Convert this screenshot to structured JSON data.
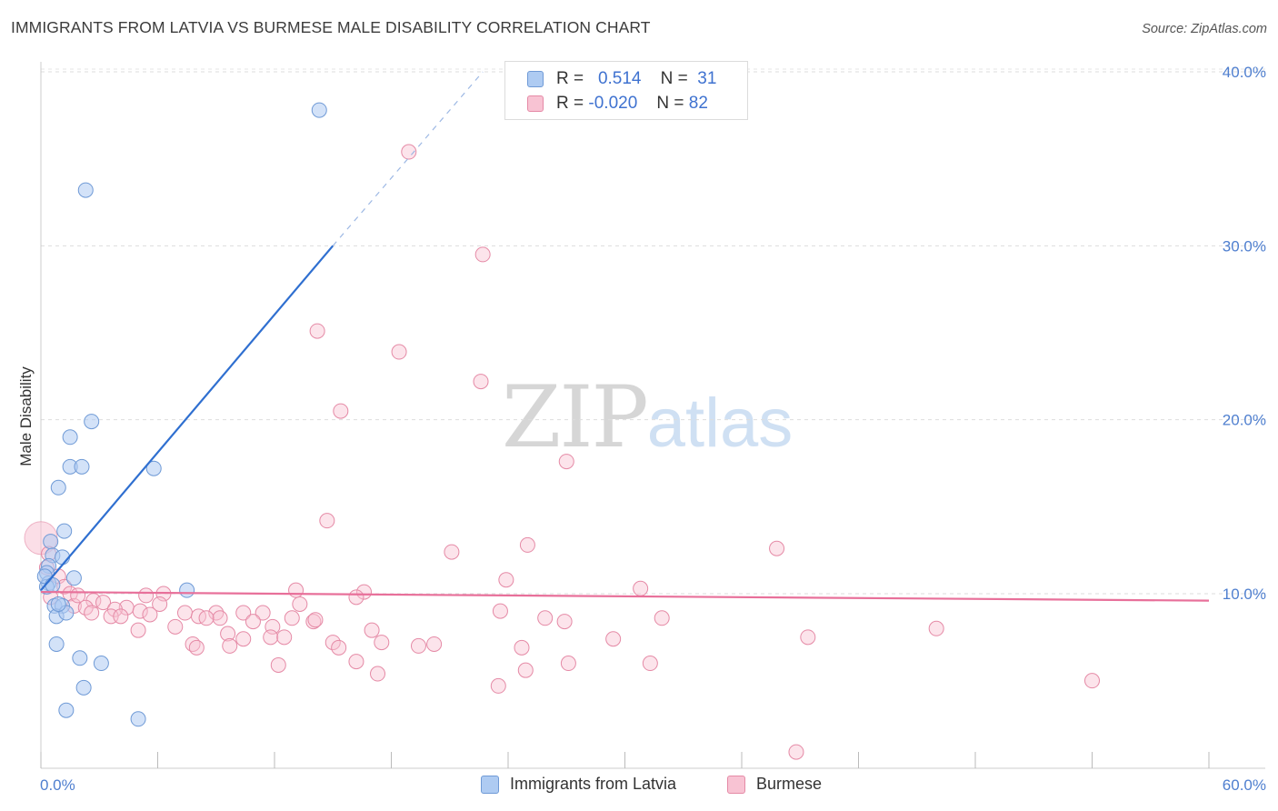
{
  "header": {
    "title": "IMMIGRANTS FROM LATVIA VS BURMESE MALE DISABILITY CORRELATION CHART",
    "source": "Source: ZipAtlas.com"
  },
  "legend": {
    "rows": [
      {
        "r_label": "R =",
        "r_value": "0.514",
        "n_label": "N =",
        "n_value": "31",
        "color": "#aecbf2",
        "border": "#6f9ad6"
      },
      {
        "r_label": "R =",
        "r_value": "-0.020",
        "n_label": "N =",
        "n_value": "82",
        "color": "#f8c3d3",
        "border": "#e58aa6"
      }
    ]
  },
  "bottom_legend": [
    {
      "label": "Immigrants from Latvia",
      "color": "#aecbf2",
      "border": "#6f9ad6"
    },
    {
      "label": "Burmese",
      "color": "#f8c3d3",
      "border": "#e58aa6"
    }
  ],
  "watermark": {
    "zip": "ZIP",
    "atlas": "atlas"
  },
  "chart_data": {
    "type": "scatter",
    "title": "IMMIGRANTS FROM LATVIA VS BURMESE MALE DISABILITY CORRELATION CHART",
    "xlabel": "",
    "ylabel": "Male Disability",
    "xlim": [
      0,
      60
    ],
    "ylim": [
      0,
      42
    ],
    "x_tick_labels": [
      "0.0%",
      "60.0%"
    ],
    "y_ticks": [
      10,
      20,
      30,
      40
    ],
    "y_tick_labels": [
      "10.0%",
      "20.0%",
      "30.0%",
      "40.0%"
    ],
    "grid": true,
    "legend_position": "top-center",
    "series": [
      {
        "name": "Immigrants from Latvia",
        "color": "#6f9ad6",
        "fill": "#aecbf2",
        "trend": {
          "x": [
            0,
            15
          ],
          "y": [
            10.2,
            30.0
          ],
          "dashed_extension_to": [
            22.7,
            40.0
          ],
          "color": "#2f6fd0"
        },
        "points": [
          [
            14.3,
            37.8
          ],
          [
            2.3,
            33.2
          ],
          [
            2.6,
            19.9
          ],
          [
            1.5,
            19.0
          ],
          [
            1.5,
            17.3
          ],
          [
            2.1,
            17.3
          ],
          [
            5.8,
            17.2
          ],
          [
            0.9,
            16.1
          ],
          [
            1.2,
            13.6
          ],
          [
            0.5,
            13.0
          ],
          [
            0.6,
            12.2
          ],
          [
            1.1,
            12.1
          ],
          [
            0.4,
            11.6
          ],
          [
            0.3,
            11.2
          ],
          [
            1.7,
            10.9
          ],
          [
            0.4,
            10.6
          ],
          [
            0.3,
            10.4
          ],
          [
            7.5,
            10.2
          ],
          [
            0.7,
            9.3
          ],
          [
            1.1,
            9.3
          ],
          [
            0.8,
            8.7
          ],
          [
            1.3,
            8.9
          ],
          [
            0.8,
            7.1
          ],
          [
            2.0,
            6.3
          ],
          [
            3.1,
            6.0
          ],
          [
            2.2,
            4.6
          ],
          [
            1.3,
            3.3
          ],
          [
            5.0,
            2.8
          ],
          [
            0.2,
            11.0
          ],
          [
            0.6,
            10.5
          ],
          [
            0.9,
            9.4
          ]
        ]
      },
      {
        "name": "Burmese",
        "color": "#e58aa6",
        "fill": "#f8c3d3",
        "trend": {
          "x": [
            0,
            60
          ],
          "y": [
            10.1,
            9.6
          ],
          "color": "#e8709a"
        },
        "points": [
          [
            18.9,
            35.4
          ],
          [
            22.7,
            29.5
          ],
          [
            14.2,
            25.1
          ],
          [
            18.4,
            23.9
          ],
          [
            22.6,
            22.2
          ],
          [
            15.4,
            20.5
          ],
          [
            27.0,
            17.6
          ],
          [
            14.7,
            14.2
          ],
          [
            25.0,
            12.8
          ],
          [
            37.8,
            12.6
          ],
          [
            21.1,
            12.4
          ],
          [
            0.4,
            12.3
          ],
          [
            0.3,
            11.5
          ],
          [
            0.9,
            11.0
          ],
          [
            1.2,
            10.4
          ],
          [
            23.9,
            10.8
          ],
          [
            30.8,
            10.3
          ],
          [
            1.5,
            10.0
          ],
          [
            13.1,
            10.2
          ],
          [
            16.6,
            10.1
          ],
          [
            6.3,
            10.0
          ],
          [
            5.4,
            9.9
          ],
          [
            2.7,
            9.6
          ],
          [
            3.2,
            9.5
          ],
          [
            6.1,
            9.4
          ],
          [
            1.7,
            9.3
          ],
          [
            2.3,
            9.2
          ],
          [
            4.4,
            9.2
          ],
          [
            13.3,
            9.4
          ],
          [
            16.2,
            9.8
          ],
          [
            3.8,
            9.1
          ],
          [
            5.1,
            9.0
          ],
          [
            9.0,
            8.9
          ],
          [
            10.4,
            8.9
          ],
          [
            11.4,
            8.9
          ],
          [
            23.6,
            9.0
          ],
          [
            2.6,
            8.9
          ],
          [
            3.6,
            8.7
          ],
          [
            4.1,
            8.7
          ],
          [
            5.6,
            8.8
          ],
          [
            7.4,
            8.9
          ],
          [
            8.1,
            8.7
          ],
          [
            9.2,
            8.6
          ],
          [
            12.9,
            8.6
          ],
          [
            14.0,
            8.4
          ],
          [
            25.9,
            8.6
          ],
          [
            31.9,
            8.6
          ],
          [
            8.5,
            8.6
          ],
          [
            10.9,
            8.4
          ],
          [
            14.1,
            8.5
          ],
          [
            6.9,
            8.1
          ],
          [
            11.9,
            8.1
          ],
          [
            26.9,
            8.4
          ],
          [
            5.0,
            7.9
          ],
          [
            17.0,
            7.9
          ],
          [
            9.6,
            7.7
          ],
          [
            11.8,
            7.5
          ],
          [
            10.4,
            7.4
          ],
          [
            12.5,
            7.5
          ],
          [
            15.0,
            7.2
          ],
          [
            7.8,
            7.1
          ],
          [
            17.5,
            7.2
          ],
          [
            19.4,
            7.0
          ],
          [
            20.2,
            7.1
          ],
          [
            29.4,
            7.4
          ],
          [
            39.4,
            7.5
          ],
          [
            46.0,
            8.0
          ],
          [
            24.7,
            6.9
          ],
          [
            8.0,
            6.9
          ],
          [
            9.7,
            7.0
          ],
          [
            15.3,
            6.9
          ],
          [
            12.2,
            5.9
          ],
          [
            16.2,
            6.1
          ],
          [
            27.1,
            6.0
          ],
          [
            31.3,
            6.0
          ],
          [
            24.9,
            5.6
          ],
          [
            17.3,
            5.4
          ],
          [
            23.5,
            4.7
          ],
          [
            54.0,
            5.0
          ],
          [
            38.8,
            0.9
          ],
          [
            0.5,
            9.8
          ],
          [
            1.9,
            9.9
          ]
        ]
      }
    ]
  }
}
